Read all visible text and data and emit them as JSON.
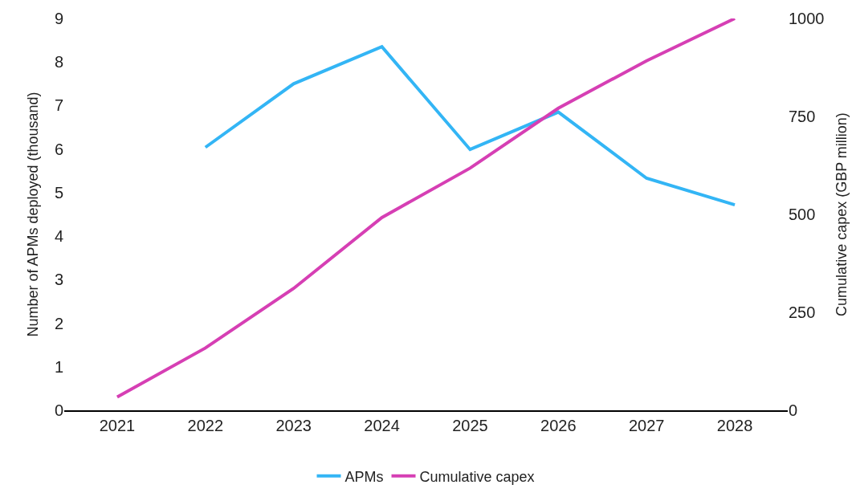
{
  "chart_data": {
    "type": "line",
    "ylabel": "Number of APMs deployed (thousand)",
    "y2label": "Cumulative capex (GBP million)",
    "categories": [
      "2021",
      "2022",
      "2023",
      "2024",
      "2025",
      "2026",
      "2027",
      "2028"
    ],
    "series": [
      {
        "name": "APMs",
        "color": "#33b5f5",
        "values": [
          null,
          6.04,
          7.5,
          8.35,
          5.99,
          6.85,
          5.33,
          4.72
        ]
      },
      {
        "name": "Cumulative capex",
        "color": "#d63fb4",
        "axis": "y2",
        "values": [
          34,
          159,
          311,
          492,
          618,
          771,
          892,
          1000
        ]
      }
    ],
    "ylim": [
      0,
      9
    ],
    "yticks": [
      0,
      1,
      2,
      3,
      4,
      5,
      6,
      7,
      8,
      9
    ],
    "y2lim": [
      0,
      1000
    ],
    "y2ticks": [
      0,
      250,
      500,
      750,
      1000
    ],
    "legend": "bottom",
    "marker": "none",
    "line_style": "solid"
  }
}
